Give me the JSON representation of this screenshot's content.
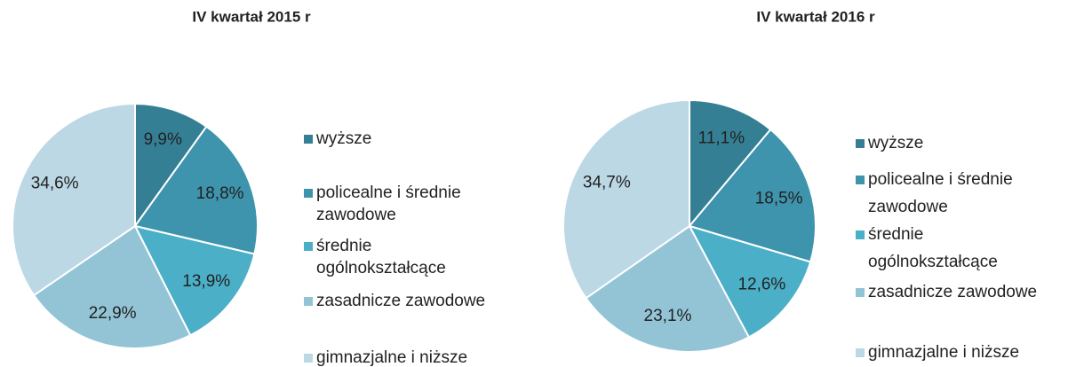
{
  "chart_data": [
    {
      "type": "pie",
      "title": "IV kwartał 2015 r",
      "categories": [
        "wyższe",
        "policealne i średnie zawodowe",
        "średnie ogólnokształcące",
        "zasadnicze zawodowe",
        "gimnazjalne i niższe"
      ],
      "values": [
        9.9,
        18.8,
        13.9,
        22.9,
        34.6
      ],
      "value_labels": [
        "9,9%",
        "18,8%",
        "13,9%",
        "22,9%",
        "34,6%"
      ],
      "colors": [
        "#357f95",
        "#3e93ad",
        "#4bafc7",
        "#93c4d6",
        "#bcd8e5"
      ]
    },
    {
      "type": "pie",
      "title": "IV kwartał 2016 r",
      "categories": [
        "wyższe",
        "policealne i średnie zawodowe",
        "średnie ogólnokształcące",
        "zasadnicze zawodowe",
        "gimnazjalne i niższe"
      ],
      "values": [
        11.1,
        18.5,
        12.6,
        23.1,
        34.7
      ],
      "value_labels": [
        "11,1%",
        "18,5%",
        "12,6%",
        "23,1%",
        "34,7%"
      ],
      "colors": [
        "#357f95",
        "#3e93ad",
        "#4bafc7",
        "#93c4d6",
        "#bcd8e5"
      ]
    }
  ]
}
